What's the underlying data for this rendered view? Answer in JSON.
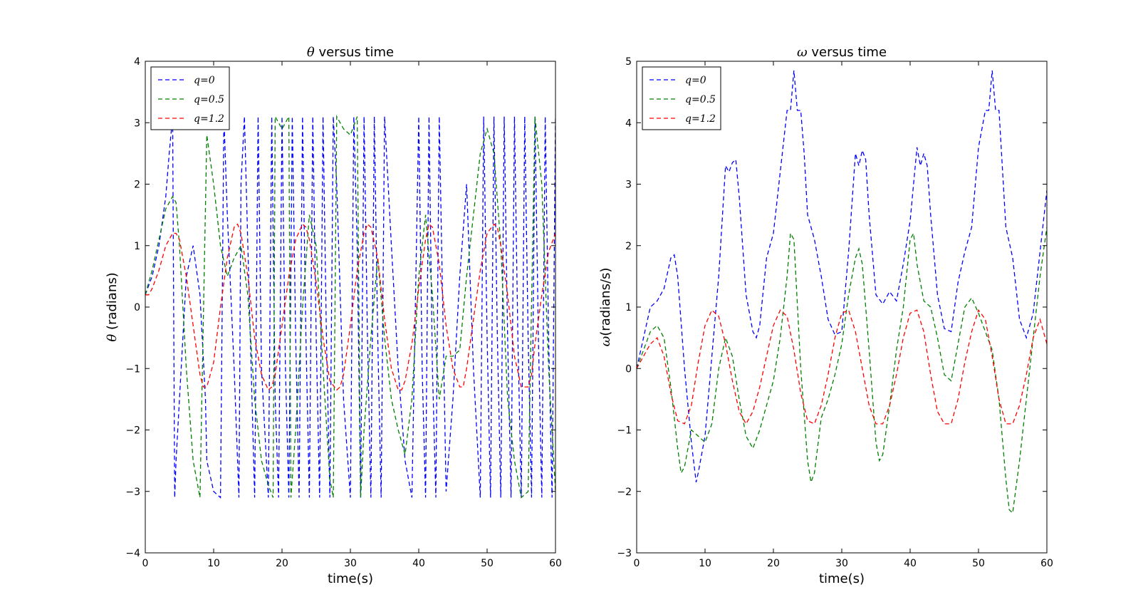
{
  "chart_data": [
    {
      "type": "line",
      "title_symbol": "θ",
      "title_text": " versus time",
      "xlabel": "time(s)",
      "ylabel_symbol": "θ",
      "ylabel_text": " (radians)",
      "xlim": [
        0,
        60
      ],
      "ylim": [
        -4,
        4
      ],
      "xticks": [
        0,
        10,
        20,
        30,
        40,
        50,
        60
      ],
      "yticks": [
        -4,
        -3,
        -2,
        -1,
        0,
        1,
        2,
        3,
        4
      ],
      "grid": false,
      "legend_position": "top-left",
      "series": [
        {
          "name": "q=0",
          "color": "#0000ff",
          "x": [
            0,
            1,
            2,
            3,
            3.5,
            4,
            4.3,
            4.5,
            5,
            6,
            7,
            8,
            8.8,
            9,
            10,
            11,
            11.5,
            12,
            13,
            13.7,
            14,
            14.5,
            15,
            16,
            16.5,
            17,
            18,
            18.5,
            19,
            19.5,
            20,
            20.5,
            21,
            21.5,
            22,
            22.5,
            23,
            23.5,
            24,
            24.5,
            25,
            25.5,
            26,
            26.5,
            27,
            27.5,
            28,
            29,
            30,
            30.5,
            31,
            31.5,
            32,
            32.5,
            33,
            33.5,
            34,
            34.5,
            35,
            36,
            37,
            38,
            39,
            40,
            40.5,
            41,
            41.5,
            42,
            42.5,
            43,
            44,
            45,
            46,
            47,
            48,
            49,
            49.5,
            50,
            50.5,
            51,
            51.5,
            52,
            52.5,
            53,
            53.5,
            54,
            54.5,
            55,
            55.5,
            56,
            56.5,
            57,
            57.5,
            58,
            58.5,
            59,
            59.5,
            60
          ],
          "y": [
            0.2,
            0.5,
            1.0,
            1.8,
            2.5,
            3.1,
            -3.1,
            -2.5,
            -1.5,
            0.5,
            1.0,
            0.2,
            -1.5,
            -2.5,
            -3.0,
            -3.1,
            3.1,
            1.5,
            -1.0,
            -3.1,
            2.0,
            3.1,
            1.0,
            -3.1,
            3.1,
            -1.0,
            -3.1,
            3.1,
            -1.5,
            -3.1,
            3.1,
            -1.0,
            -3.1,
            3.1,
            -0.5,
            -3.1,
            3.1,
            -0.5,
            -3.1,
            3.1,
            -0.5,
            -3.1,
            3.1,
            -0.5,
            -3.1,
            3.1,
            2.0,
            -1.5,
            -3.1,
            3.1,
            1.0,
            -3.1,
            3.1,
            -0.5,
            -3.1,
            3.1,
            -0.5,
            -3.1,
            3.1,
            1.0,
            -1.0,
            -2.5,
            -3.1,
            3.1,
            -1.0,
            -3.1,
            3.1,
            -1.0,
            -3.1,
            3.1,
            -3.0,
            -1.5,
            0.5,
            2.0,
            -1.0,
            -3.1,
            3.1,
            -0.5,
            -3.1,
            3.1,
            -0.5,
            -3.1,
            3.1,
            -0.5,
            -3.1,
            3.1,
            -0.5,
            -3.1,
            3.1,
            -0.5,
            -3.1,
            3.1,
            -0.5,
            -3.1,
            3.1,
            -0.5,
            -3.1,
            3.1
          ]
        },
        {
          "name": "q=0.5",
          "color": "#008000",
          "x": [
            0,
            1,
            2,
            3,
            4,
            4.5,
            5,
            6,
            7,
            8,
            9,
            10,
            11,
            12,
            13,
            14,
            15,
            16,
            17,
            18,
            18.7,
            19,
            20,
            21,
            21.3,
            22,
            23,
            24,
            25,
            26,
            27,
            27.5,
            28,
            29,
            30,
            31,
            31.5,
            32,
            33,
            34,
            35,
            36,
            37,
            38,
            39,
            40,
            41,
            42,
            43,
            44,
            45,
            46,
            47,
            48,
            49,
            50,
            51,
            52,
            53,
            54,
            55,
            56,
            57,
            58,
            59,
            60
          ],
          "y": [
            0.2,
            0.6,
            1.1,
            1.6,
            1.8,
            1.7,
            1.0,
            -1.0,
            -2.5,
            -3.1,
            2.8,
            2.0,
            1.0,
            0.5,
            0.8,
            1.0,
            0.2,
            -1.5,
            -2.5,
            -2.9,
            -3.1,
            3.1,
            2.9,
            3.1,
            -3.1,
            -2.0,
            0.0,
            1.5,
            1.0,
            -1.0,
            -2.8,
            -3.1,
            3.1,
            2.9,
            2.8,
            3.1,
            -3.1,
            -2.0,
            -0.5,
            0.8,
            -0.5,
            -1.5,
            -2.0,
            -2.4,
            -1.5,
            0.5,
            1.5,
            0.2,
            -1.5,
            -0.8,
            -0.8,
            -0.7,
            0.5,
            1.5,
            2.5,
            2.9,
            2.5,
            1.0,
            -1.5,
            -2.5,
            -3.1,
            -3.0,
            3.1,
            2.0,
            -1.0,
            -3.0
          ]
        },
        {
          "name": "q=1.2",
          "color": "#ff0000",
          "x": [
            0,
            0.5,
            1,
            2,
            3,
            4,
            4.5,
            5,
            6,
            7,
            8,
            8.5,
            9,
            10,
            11,
            12,
            13,
            13.5,
            14,
            15,
            16,
            17,
            18,
            18.5,
            19,
            20,
            21,
            22,
            23,
            23.5,
            24,
            25,
            26,
            27,
            28,
            28.5,
            29,
            30,
            31,
            32,
            32.5,
            33,
            34,
            35,
            36,
            37,
            37.5,
            38,
            39,
            40,
            41,
            41.5,
            42,
            43,
            44,
            45,
            46,
            46.5,
            47,
            48,
            49,
            50,
            51,
            51.5,
            52,
            53,
            54,
            55,
            56,
            56.5,
            57,
            58,
            59,
            60
          ],
          "y": [
            0.2,
            0.2,
            0.3,
            0.6,
            1.0,
            1.2,
            1.2,
            1.1,
            0.5,
            -0.3,
            -1.1,
            -1.3,
            -1.3,
            -0.9,
            0.0,
            0.8,
            1.3,
            1.35,
            1.2,
            0.5,
            -0.5,
            -1.1,
            -1.35,
            -1.3,
            -1.1,
            -0.3,
            0.5,
            1.1,
            1.35,
            1.3,
            1.1,
            0.4,
            -0.5,
            -1.2,
            -1.35,
            -1.3,
            -1.1,
            -0.3,
            0.6,
            1.2,
            1.35,
            1.3,
            0.8,
            -0.2,
            -1.0,
            -1.35,
            -1.35,
            -1.2,
            -0.6,
            0.3,
            1.1,
            1.35,
            1.3,
            0.7,
            -0.3,
            -1.0,
            -1.3,
            -1.3,
            -1.0,
            -0.2,
            0.6,
            1.2,
            1.35,
            1.3,
            1.0,
            0.2,
            -0.8,
            -1.3,
            -1.3,
            -1.1,
            -0.6,
            0.2,
            0.9,
            1.2
          ]
        }
      ]
    },
    {
      "type": "line",
      "title_symbol": "ω",
      "title_text": " versus time",
      "xlabel": "time(s)",
      "ylabel_symbol": "ω",
      "ylabel_text": "(radians/s)",
      "xlim": [
        0,
        60
      ],
      "ylim": [
        -3,
        5
      ],
      "xticks": [
        0,
        10,
        20,
        30,
        40,
        50,
        60
      ],
      "yticks": [
        -3,
        -2,
        -1,
        0,
        1,
        2,
        3,
        4,
        5
      ],
      "grid": false,
      "legend_position": "top-left",
      "series": [
        {
          "name": "q=0",
          "color": "#0000ff",
          "x": [
            0,
            1,
            2,
            3,
            4,
            5,
            5.5,
            6,
            7,
            7.5,
            8,
            8.7,
            9,
            10,
            11,
            12,
            13,
            13.5,
            14,
            14.5,
            15,
            16,
            17,
            17.5,
            18,
            19,
            20,
            21,
            22,
            22.5,
            23,
            23.5,
            24,
            24.5,
            25,
            26,
            27,
            28,
            29,
            30,
            31,
            32,
            32.5,
            33,
            33.5,
            34,
            35,
            36,
            37,
            38,
            39,
            40,
            41,
            41.5,
            42,
            42.5,
            43,
            44,
            45,
            46,
            47,
            48,
            49,
            50,
            51,
            51.5,
            52,
            52.5,
            53,
            54,
            55,
            56,
            57,
            58,
            59,
            60
          ],
          "y": [
            0,
            0.5,
            1.0,
            1.1,
            1.3,
            1.8,
            1.85,
            1.5,
            0.0,
            -0.6,
            -1.2,
            -1.85,
            -1.7,
            -1.1,
            0.2,
            1.5,
            3.3,
            3.2,
            3.35,
            3.4,
            2.8,
            1.2,
            0.6,
            0.5,
            0.7,
            1.8,
            2.2,
            3.2,
            4.2,
            4.2,
            4.85,
            4.2,
            4.2,
            3.5,
            2.5,
            2.1,
            1.5,
            0.8,
            0.55,
            0.6,
            1.9,
            3.5,
            3.3,
            3.55,
            3.4,
            2.5,
            1.2,
            1.05,
            1.25,
            1.1,
            1.7,
            2.4,
            3.6,
            3.3,
            3.5,
            3.3,
            2.5,
            1.2,
            0.65,
            0.6,
            1.4,
            1.9,
            2.3,
            3.6,
            4.2,
            4.2,
            4.85,
            4.2,
            4.2,
            2.3,
            1.8,
            0.8,
            0.5,
            0.9,
            1.9,
            2.9
          ]
        },
        {
          "name": "q=0.5",
          "color": "#008000",
          "x": [
            0,
            1,
            2,
            3,
            4,
            5,
            6,
            6.5,
            7,
            8,
            9,
            10,
            11,
            12,
            13,
            14,
            15,
            16,
            17,
            18,
            19,
            20,
            21,
            22,
            22.5,
            23,
            24,
            25,
            25.5,
            26,
            27,
            28,
            29,
            30,
            31,
            32,
            32.5,
            33,
            34,
            35,
            35.5,
            36,
            37,
            38,
            39,
            40,
            40.5,
            41,
            42,
            43,
            44,
            45,
            46,
            47,
            48,
            49,
            50,
            51,
            52,
            53,
            54,
            54.5,
            55,
            56,
            57,
            58,
            59,
            60
          ],
          "y": [
            0,
            0.3,
            0.6,
            0.7,
            0.5,
            -0.3,
            -1.3,
            -1.7,
            -1.6,
            -1.0,
            -1.1,
            -1.2,
            -0.9,
            0.0,
            0.5,
            0.2,
            -0.5,
            -1.1,
            -1.3,
            -1.0,
            -0.6,
            -0.2,
            0.5,
            1.5,
            2.2,
            2.1,
            0.0,
            -1.5,
            -1.85,
            -1.7,
            -0.8,
            -0.5,
            -0.1,
            0.4,
            1.2,
            1.8,
            1.95,
            1.7,
            0.3,
            -1.2,
            -1.5,
            -1.4,
            -0.6,
            0.3,
            1.0,
            2.1,
            2.2,
            1.7,
            1.1,
            1.0,
            0.5,
            -0.1,
            -0.2,
            0.4,
            1.0,
            1.15,
            0.9,
            0.6,
            0.3,
            -0.5,
            -1.8,
            -2.3,
            -2.35,
            -1.5,
            -0.5,
            0.5,
            1.5,
            2.3
          ]
        },
        {
          "name": "q=1.2",
          "color": "#ff0000",
          "x": [
            0,
            0.5,
            1,
            2,
            3,
            4,
            5,
            6,
            7,
            8,
            9,
            10,
            11,
            12,
            13,
            14,
            15,
            16,
            17,
            18,
            19,
            20,
            21,
            22,
            23,
            24,
            25,
            26,
            27,
            28,
            29,
            30,
            31,
            32,
            33,
            34,
            35,
            36,
            37,
            38,
            39,
            40,
            41,
            42,
            43,
            44,
            45,
            46,
            47,
            48,
            49,
            50,
            51,
            52,
            53,
            54,
            55,
            56,
            57,
            58,
            59,
            60
          ],
          "y": [
            0,
            0.1,
            0.2,
            0.4,
            0.5,
            0.2,
            -0.4,
            -0.85,
            -0.9,
            -0.6,
            0.1,
            0.7,
            0.95,
            0.85,
            0.4,
            -0.2,
            -0.7,
            -0.9,
            -0.7,
            -0.3,
            0.2,
            0.7,
            0.95,
            0.85,
            0.3,
            -0.4,
            -0.85,
            -0.9,
            -0.6,
            -0.1,
            0.5,
            0.9,
            0.95,
            0.6,
            0.0,
            -0.6,
            -0.9,
            -0.9,
            -0.6,
            -0.1,
            0.5,
            0.9,
            0.95,
            0.6,
            -0.1,
            -0.7,
            -0.9,
            -0.9,
            -0.5,
            0.1,
            0.6,
            0.95,
            0.8,
            0.2,
            -0.5,
            -0.9,
            -0.9,
            -0.6,
            -0.1,
            0.5,
            0.8,
            0.4
          ]
        }
      ]
    }
  ]
}
